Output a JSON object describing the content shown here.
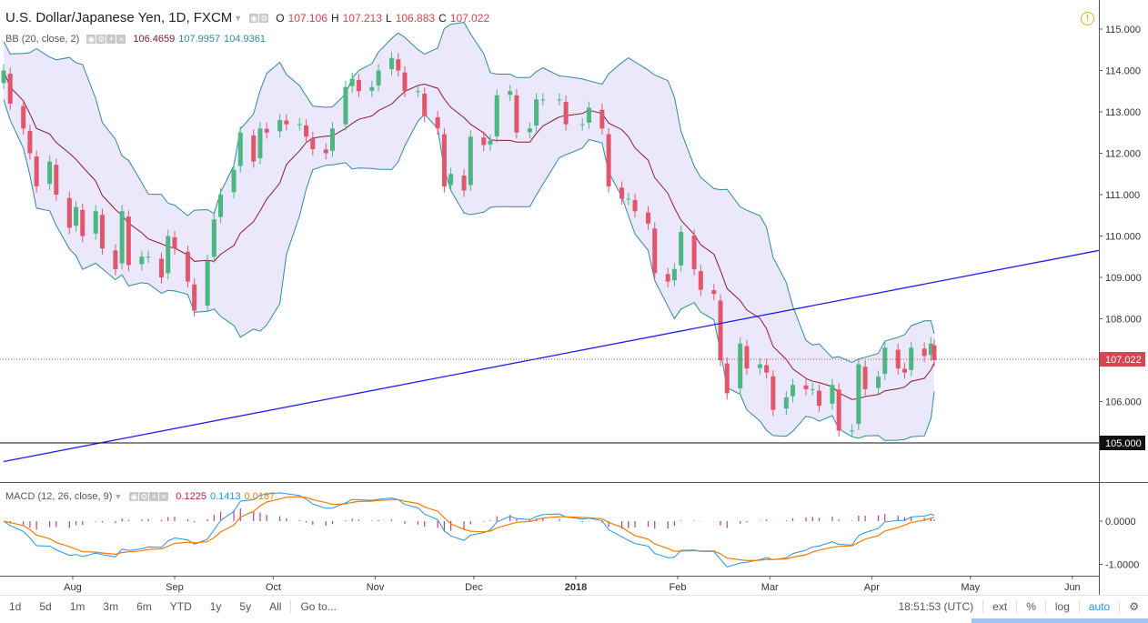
{
  "header": {
    "symbol": "U.S. Dollar/Japanese Yen, 1D, FXCM",
    "open_label": "O",
    "open": "107.106",
    "high_label": "H",
    "high": "107.213",
    "low_label": "L",
    "low": "106.883",
    "close_label": "C",
    "close": "107.022"
  },
  "bb_legend": {
    "label": "BB (20, close, 2)",
    "v1": "106.4659",
    "v2": "107.9957",
    "v3": "104.9361"
  },
  "macd_legend": {
    "label": "MACD (12, 26, close, 9)",
    "v1": "0.1225",
    "v2": "0.1413",
    "v3": "0.0187"
  },
  "colors": {
    "up": "#4cb782",
    "down": "#e0566a",
    "bb_band": "#2a8c9c",
    "bb_mid": "#8c1a2b",
    "bb_fill": "#ebe8fb",
    "trendline": "#1d1df0",
    "macd": "#2196f3",
    "signal": "#f57c00",
    "hist": "#c23b8a",
    "price_line": "#d64550"
  },
  "toolbar": {
    "ranges": [
      "1d",
      "5d",
      "1m",
      "3m",
      "6m",
      "YTD",
      "1y",
      "5y",
      "All"
    ],
    "goto": "Go to...",
    "time": "18:51:53 (UTC)",
    "ext": "ext",
    "percent": "%",
    "log": "log",
    "auto": "auto"
  },
  "chart_data": {
    "type": "candlestick",
    "title": "U.S. Dollar/Japanese Yen, 1D, FXCM",
    "price_axis": {
      "ticks": [
        "115.000",
        "114.000",
        "113.000",
        "112.000",
        "111.000",
        "110.000",
        "109.000",
        "108.000",
        "107.000",
        "106.000",
        "105.000"
      ],
      "range": [
        104.5,
        115.5
      ]
    },
    "time_axis": {
      "ticks": [
        "Aug",
        "Sep",
        "Oct",
        "Nov",
        "Dec",
        "2018",
        "Feb",
        "Mar",
        "Apr",
        "May",
        "Jun"
      ]
    },
    "last_price": "107.022",
    "horizontal_line": "105.000",
    "trendline": {
      "start": {
        "date": "2017-07-11",
        "price": 104.55
      },
      "end": {
        "date": "2018-06-09",
        "price": 109.65
      }
    },
    "series_close": [
      [
        "2017-07-11",
        114.0
      ],
      [
        "2017-07-13",
        113.2
      ],
      [
        "2017-07-17",
        112.6
      ],
      [
        "2017-07-19",
        112.0
      ],
      [
        "2017-07-21",
        111.2
      ],
      [
        "2017-07-25",
        111.8
      ],
      [
        "2017-07-27",
        111.0
      ],
      [
        "2017-07-31",
        110.2
      ],
      [
        "2017-08-02",
        110.7
      ],
      [
        "2017-08-04",
        110.0
      ],
      [
        "2017-08-08",
        110.6
      ],
      [
        "2017-08-10",
        109.7
      ],
      [
        "2017-08-14",
        109.2
      ],
      [
        "2017-08-16",
        110.6
      ],
      [
        "2017-08-18",
        109.3
      ],
      [
        "2017-08-22",
        109.5
      ],
      [
        "2017-08-24",
        109.5
      ],
      [
        "2017-08-28",
        109.0
      ],
      [
        "2017-08-30",
        110.0
      ],
      [
        "2017-09-01",
        109.7
      ],
      [
        "2017-09-05",
        108.9
      ],
      [
        "2017-09-07",
        108.2
      ],
      [
        "2017-09-11",
        109.4
      ],
      [
        "2017-09-13",
        110.4
      ],
      [
        "2017-09-15",
        111.0
      ],
      [
        "2017-09-19",
        111.6
      ],
      [
        "2017-09-21",
        112.5
      ],
      [
        "2017-09-25",
        111.8
      ],
      [
        "2017-09-27",
        112.6
      ],
      [
        "2017-09-29",
        112.5
      ],
      [
        "2017-10-03",
        112.8
      ],
      [
        "2017-10-05",
        112.7
      ],
      [
        "2017-10-09",
        112.7
      ],
      [
        "2017-10-11",
        112.4
      ],
      [
        "2017-10-13",
        112.1
      ],
      [
        "2017-10-17",
        112.0
      ],
      [
        "2017-10-19",
        112.6
      ],
      [
        "2017-10-23",
        113.6
      ],
      [
        "2017-10-25",
        113.8
      ],
      [
        "2017-10-27",
        113.5
      ],
      [
        "2017-10-31",
        113.6
      ],
      [
        "2017-11-02",
        114.0
      ],
      [
        "2017-11-06",
        114.3
      ],
      [
        "2017-11-08",
        114.0
      ],
      [
        "2017-11-10",
        113.5
      ],
      [
        "2017-11-14",
        113.5
      ],
      [
        "2017-11-16",
        112.9
      ],
      [
        "2017-11-20",
        112.6
      ],
      [
        "2017-11-22",
        111.2
      ],
      [
        "2017-11-24",
        111.5
      ],
      [
        "2017-11-28",
        111.1
      ],
      [
        "2017-11-30",
        112.4
      ],
      [
        "2017-12-04",
        112.2
      ],
      [
        "2017-12-06",
        112.3
      ],
      [
        "2017-12-08",
        113.4
      ],
      [
        "2017-12-12",
        113.5
      ],
      [
        "2017-12-14",
        112.5
      ],
      [
        "2017-12-18",
        112.6
      ],
      [
        "2017-12-20",
        113.3
      ],
      [
        "2017-12-22",
        113.3
      ],
      [
        "2017-12-27",
        113.3
      ],
      [
        "2017-12-29",
        112.7
      ],
      [
        "2018-01-03",
        112.7
      ],
      [
        "2018-01-05",
        113.1
      ],
      [
        "2018-01-09",
        112.6
      ],
      [
        "2018-01-11",
        111.2
      ],
      [
        "2018-01-15",
        110.9
      ],
      [
        "2018-01-17",
        110.9
      ],
      [
        "2018-01-19",
        110.6
      ],
      [
        "2018-01-23",
        110.3
      ],
      [
        "2018-01-25",
        109.1
      ],
      [
        "2018-01-29",
        108.9
      ],
      [
        "2018-01-31",
        109.2
      ],
      [
        "2018-02-02",
        110.1
      ],
      [
        "2018-02-06",
        109.2
      ],
      [
        "2018-02-08",
        108.7
      ],
      [
        "2018-02-12",
        108.6
      ],
      [
        "2018-02-14",
        107.0
      ],
      [
        "2018-02-16",
        106.2
      ],
      [
        "2018-02-20",
        107.4
      ],
      [
        "2018-02-22",
        106.8
      ],
      [
        "2018-02-26",
        106.9
      ],
      [
        "2018-02-28",
        106.7
      ],
      [
        "2018-03-02",
        105.8
      ],
      [
        "2018-03-06",
        106.1
      ],
      [
        "2018-03-08",
        106.4
      ],
      [
        "2018-03-12",
        106.3
      ],
      [
        "2018-03-14",
        106.3
      ],
      [
        "2018-03-16",
        105.9
      ],
      [
        "2018-03-20",
        106.4
      ],
      [
        "2018-03-22",
        105.3
      ],
      [
        "2018-03-26",
        105.3
      ],
      [
        "2018-03-28",
        106.9
      ],
      [
        "2018-03-30",
        106.3
      ],
      [
        "2018-04-03",
        106.6
      ],
      [
        "2018-04-05",
        107.3
      ],
      [
        "2018-04-09",
        106.8
      ],
      [
        "2018-04-11",
        106.7
      ],
      [
        "2018-04-13",
        107.3
      ],
      [
        "2018-04-17",
        107.1
      ],
      [
        "2018-04-19",
        107.4
      ],
      [
        "2018-04-20",
        107.0
      ]
    ],
    "bollinger": {
      "period": 20,
      "stddev": 2,
      "last": {
        "basis": 106.4659,
        "upper": 107.9957,
        "lower": 104.9361
      }
    },
    "macd_axis": {
      "ticks": [
        "0.0000",
        "-1.0000"
      ]
    },
    "macd": {
      "fast": 12,
      "slow": 26,
      "signal": 9,
      "last": {
        "histogram": 0.1225,
        "macd": 0.1413,
        "signal": 0.0187
      }
    }
  }
}
